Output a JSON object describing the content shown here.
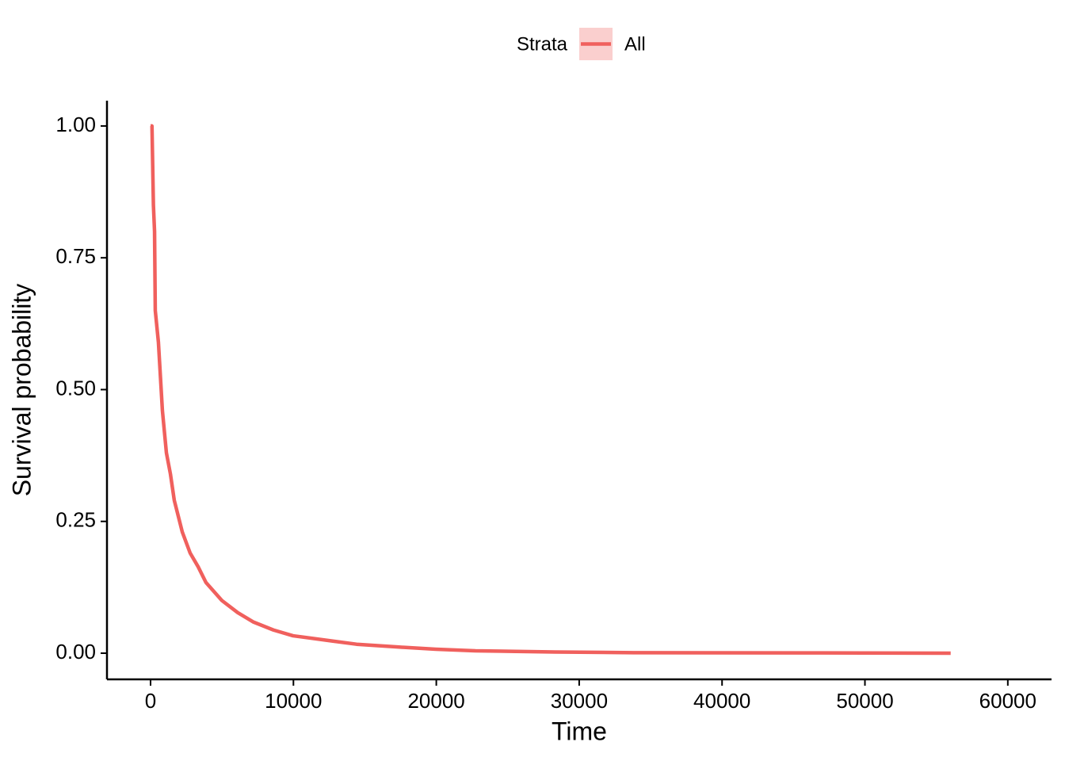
{
  "chart_data": {
    "type": "line",
    "x_label": "Time",
    "y_label": "Survival probability",
    "legend_title": "Strata",
    "legend_position": "top",
    "x": [
      0,
      100,
      200,
      280,
      330,
      550,
      830,
      1110,
      1390,
      1660,
      2220,
      2770,
      3330,
      3880,
      4990,
      6100,
      7210,
      8600,
      9980,
      12760,
      14420,
      17190,
      19970,
      22740,
      28290,
      33800,
      46900,
      56000
    ],
    "series": [
      {
        "name": "All",
        "color": "#f0605d",
        "values": [
          1.0,
          1.0,
          0.85,
          0.8,
          0.65,
          0.59,
          0.46,
          0.38,
          0.34,
          0.29,
          0.23,
          0.19,
          0.164,
          0.134,
          0.1,
          0.077,
          0.059,
          0.044,
          0.033,
          0.023,
          0.017,
          0.012,
          0.0075,
          0.0045,
          0.0023,
          0.001,
          0.0005,
          0
        ]
      }
    ],
    "xlim": [
      -3050,
      63060
    ],
    "ylim": [
      -0.0496,
      1.048
    ],
    "xticks": [
      0,
      10000,
      20000,
      30000,
      40000,
      50000,
      60000
    ],
    "yticks": [
      {
        "value": 0,
        "label": "0.00"
      },
      {
        "value": 0.25,
        "label": "0.25"
      },
      {
        "value": 0.5,
        "label": "0.50"
      },
      {
        "value": 0.75,
        "label": "0.75"
      },
      {
        "value": 1,
        "label": "1.00"
      }
    ],
    "grid": false
  }
}
